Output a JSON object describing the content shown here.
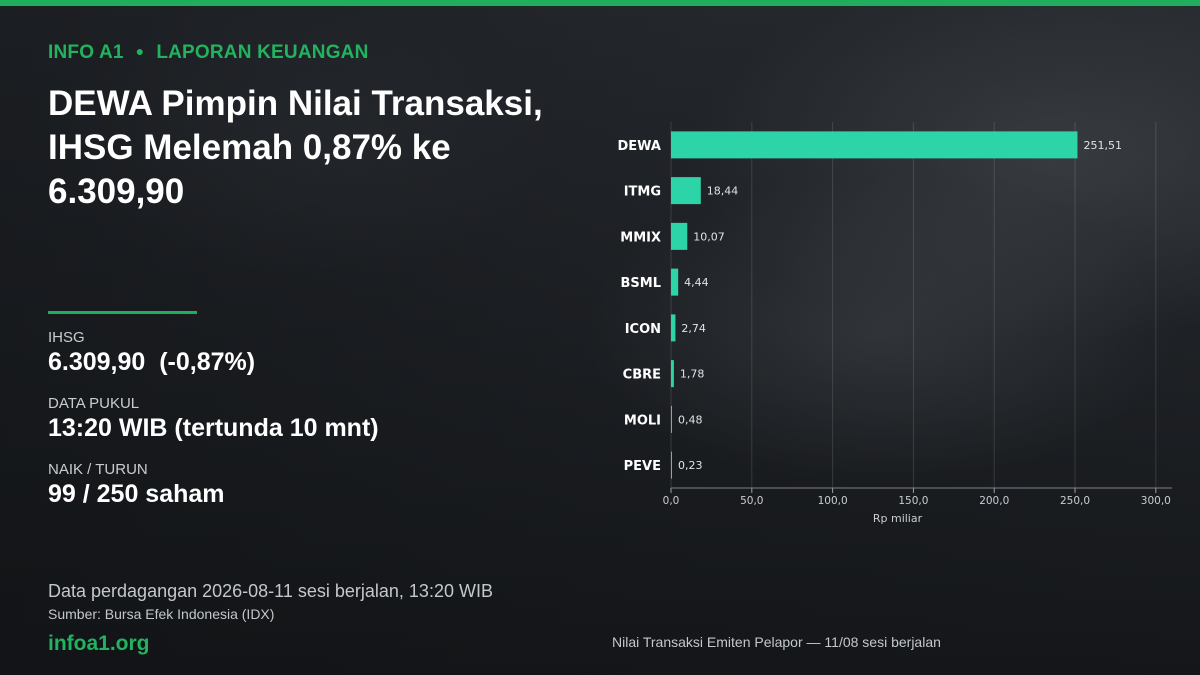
{
  "header": {
    "kicker_section": "INFO A1",
    "kicker_category": "LAPORAN KEUANGAN",
    "headline": "DEWA Pimpin Nilai Transaksi, IHSG Melemah 0,87% ke 6.309,90"
  },
  "stats": [
    {
      "label": "IHSG",
      "value": "6.309,90  (-0,87%)"
    },
    {
      "label": "DATA PUKUL",
      "value": "13:20 WIB (tertunda 10 mnt)"
    },
    {
      "label": "NAIK / TURUN",
      "value": "99 / 250 saham"
    }
  ],
  "footer": {
    "note": "Data perdagangan 2026-08-11 sesi berjalan, 13:20 WIB",
    "source": "Sumber: Bursa Efek Indonesia (IDX)",
    "brand": "infoa1.org"
  },
  "colors": {
    "accent": "#1fae5b",
    "bar": "#2dd4a8"
  },
  "chart_data": {
    "type": "bar",
    "orientation": "horizontal",
    "title": "",
    "caption": "Nilai Transaksi Emiten Pelapor — 11/08 sesi berjalan",
    "xlabel": "Rp miliar",
    "ylabel": "",
    "categories": [
      "DEWA",
      "ITMG",
      "MMIX",
      "BSML",
      "ICON",
      "CBRE",
      "MOLI",
      "PEVE"
    ],
    "values": [
      251.51,
      18.44,
      10.07,
      4.44,
      2.74,
      1.78,
      0.48,
      0.23
    ],
    "value_labels": [
      "251,51",
      "18,44",
      "10,07",
      "4,44",
      "2,74",
      "1,78",
      "0,48",
      "0,23"
    ],
    "xlim": [
      0,
      310
    ],
    "ticks": [
      0,
      50,
      100,
      150,
      200,
      250,
      300
    ],
    "tick_labels": [
      "0,0",
      "50,0",
      "100,0",
      "150,0",
      "200,0",
      "250,0",
      "300,0"
    ],
    "grid": true
  }
}
